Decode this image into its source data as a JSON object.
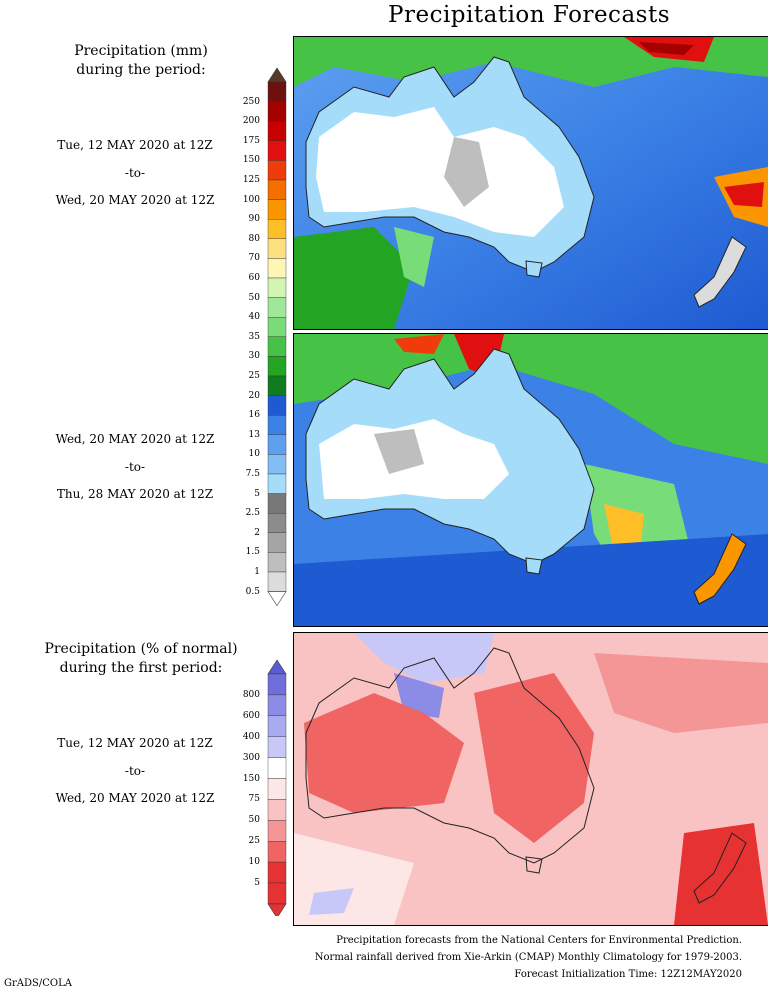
{
  "title": "Precipitation Forecasts",
  "precip_heading": [
    "Precipitation (mm)",
    "during the period:"
  ],
  "period1": {
    "start": "Tue, 12 MAY 2020 at 12Z",
    "to": "-to-",
    "end": "Wed, 20 MAY 2020 at 12Z"
  },
  "period2": {
    "start": "Wed, 20 MAY 2020 at 12Z",
    "to": "-to-",
    "end": "Thu, 28 MAY 2020 at 12Z"
  },
  "anomaly_heading": [
    "Precipitation (% of normal)",
    "during the first period:"
  ],
  "period3": {
    "start": "Tue, 12 MAY 2020 at 12Z",
    "to": "-to-",
    "end": "Wed, 20 MAY 2020 at 12Z"
  },
  "precip_scale": {
    "labels": [
      "250",
      "200",
      "175",
      "150",
      "125",
      "100",
      "90",
      "80",
      "70",
      "60",
      "50",
      "40",
      "35",
      "30",
      "25",
      "20",
      "16",
      "13",
      "10",
      "7.5",
      "5",
      "2.5",
      "2",
      "1.5",
      "1",
      "0.5"
    ],
    "colors": [
      "#6e1010",
      "#a50000",
      "#c80000",
      "#e01010",
      "#f03c0a",
      "#f56e00",
      "#fa9600",
      "#fdbe28",
      "#fde080",
      "#fff5b4",
      "#d2f5b4",
      "#a0e69b",
      "#78dc78",
      "#46c346",
      "#23a423",
      "#0f7d1e",
      "#1e5ad2",
      "#3c82e6",
      "#5ea0f0",
      "#82bef5",
      "#a5dcfa",
      "#787878",
      "#8c8c8c",
      "#a5a5a5",
      "#bebebe",
      "#dcdcdc"
    ],
    "top_arrow": "#553a2a"
  },
  "anomaly_scale": {
    "labels": [
      "800",
      "600",
      "400",
      "300",
      "150",
      "75",
      "50",
      "25",
      "10",
      "5"
    ],
    "colors": [
      "#6e6edc",
      "#8c8ce6",
      "#aaaaf0",
      "#c8c8f8",
      "#ffffff",
      "#fde6e6",
      "#fac3c3",
      "#f59696",
      "#f06464",
      "#e63232",
      "#e63232"
    ],
    "top_arrow": "#5a5ad2",
    "bottom_arrow": "#e63232"
  },
  "footer": [
    "Precipitation forecasts from the National Centers for Environmental Prediction.",
    "Normal rainfall derived from Xie-Arkin (CMAP) Monthly Climatology for 1979-2003.",
    "Forecast Initialization Time: 12Z12MAY2020"
  ],
  "credit": "GrADS/COLA"
}
